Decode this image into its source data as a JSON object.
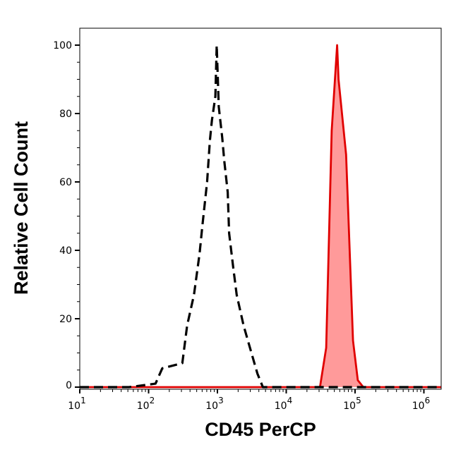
{
  "chart_data": {
    "type": "area",
    "title": "",
    "xlabel": "CD45 PerCP",
    "ylabel": "Relative Cell Count",
    "x_scale": "log",
    "xlim": [
      10,
      1800000
    ],
    "ylim": [
      0,
      105
    ],
    "x_ticks": [
      {
        "value": 10,
        "base": "10",
        "exp": "1"
      },
      {
        "value": 100,
        "base": "10",
        "exp": "2"
      },
      {
        "value": 1000,
        "base": "10",
        "exp": "3"
      },
      {
        "value": 10000,
        "base": "10",
        "exp": "4"
      },
      {
        "value": 100000,
        "base": "10",
        "exp": "5"
      },
      {
        "value": 1000000,
        "base": "10",
        "exp": "6"
      }
    ],
    "y_ticks": [
      0,
      20,
      40,
      60,
      80,
      100
    ],
    "grid": false,
    "legend": "none",
    "series": [
      {
        "style": "dashed",
        "color": "#000000",
        "fill": "none",
        "x": [
          10,
          52,
          126,
          158,
          309,
          363,
          457,
          550,
          603,
          708,
          776,
          832,
          933,
          977,
          1047,
          1175,
          1259,
          1413,
          1479,
          1698,
          1905,
          2399,
          3020,
          3802,
          4571,
          1800000
        ],
        "y": [
          0,
          0,
          1,
          5.5,
          7,
          18,
          27,
          39,
          47,
          60,
          72,
          78,
          85,
          100,
          82,
          73,
          66,
          57,
          45,
          35,
          27,
          18,
          11,
          4,
          0,
          0
        ]
      },
      {
        "style": "solid",
        "color": "#e00000",
        "fill": "#ff9a9a",
        "x": [
          10,
          30903,
          38019,
          45709,
          54954,
          57544,
          74131,
          93325,
          109648,
          131826,
          1800000
        ],
        "y": [
          0,
          0,
          11.5,
          75,
          100,
          90,
          68,
          13.6,
          2,
          0,
          0
        ]
      }
    ]
  }
}
